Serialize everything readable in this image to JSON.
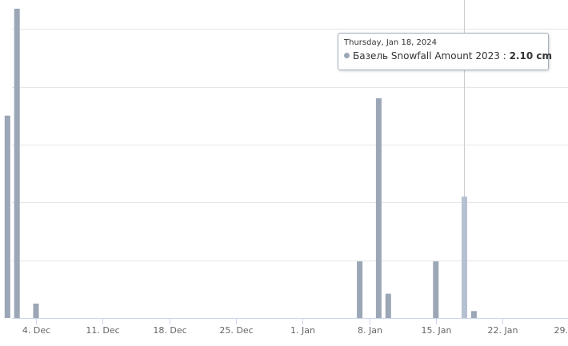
{
  "chart_data": {
    "type": "bar",
    "x_axis": {
      "type": "datetime",
      "tick_labels": [
        "4. Dec",
        "11. Dec",
        "18. Dec",
        "25. Dec",
        "1. Jan",
        "8. Jan",
        "15. Jan",
        "22. Jan",
        "29. Jan"
      ],
      "ticks": [
        "2023-12-04",
        "2023-12-11",
        "2023-12-18",
        "2023-12-25",
        "2024-01-01",
        "2024-01-08",
        "2024-01-15",
        "2024-01-22",
        "2024-01-29"
      ],
      "range": [
        "2023-12-01",
        "2024-02-01"
      ]
    },
    "y_axis": {
      "labels_visible": false,
      "range": [
        0,
        5.5
      ],
      "gridlines": [
        1,
        2,
        3,
        4,
        5
      ]
    },
    "grid": true,
    "series": [
      {
        "name": "Базель Snowfall Amount 2023",
        "unit": "cm",
        "color": "#9ba6b6",
        "hover_color": "#b5c0d1",
        "points": [
          {
            "x": "2023-12-01",
            "y": 3.5
          },
          {
            "x": "2023-12-02",
            "y": 5.35
          },
          {
            "x": "2023-12-04",
            "y": 0.25
          },
          {
            "x": "2024-01-07",
            "y": 0.98
          },
          {
            "x": "2024-01-09",
            "y": 3.8
          },
          {
            "x": "2024-01-10",
            "y": 0.42
          },
          {
            "x": "2024-01-15",
            "y": 0.98
          },
          {
            "x": "2024-01-18",
            "y": 2.1
          },
          {
            "x": "2024-01-19",
            "y": 0.12
          }
        ]
      }
    ],
    "tooltip": {
      "date": "Thursday, Jan 18, 2024",
      "series_label": "Базель Snowfall Amount 2023",
      "separator": ":",
      "value": "2.10 cm",
      "x": "2024-01-18"
    }
  }
}
